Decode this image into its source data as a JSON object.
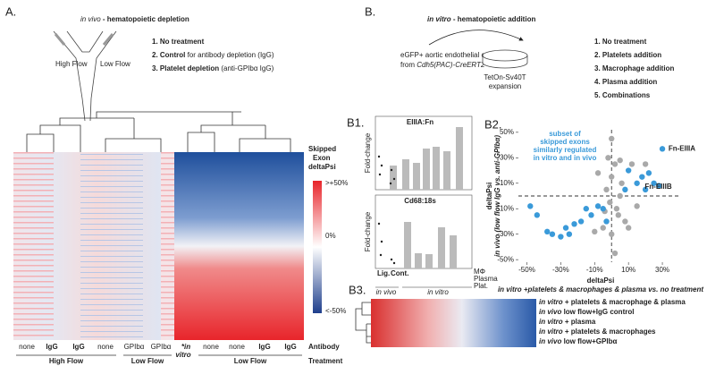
{
  "panels": {
    "A": {
      "label": "A.",
      "title_italic": "in vivo",
      "title_rest": " - hematopoietic depletion",
      "vessel_labels": [
        "High Flow",
        "Low Flow"
      ],
      "list": [
        [
          "1. No treatment",
          ""
        ],
        [
          "2. Control",
          " for antibody depletion (IgG)"
        ],
        [
          "3. Platelet depletion",
          " (anti-GPIbα IgG)"
        ]
      ],
      "legend_title": [
        "Skipped",
        "Exon",
        "deltaPsi"
      ],
      "legend_ticks": [
        ">+50%",
        "0%",
        "<-50%"
      ],
      "columns": [
        "none",
        "IgG",
        "IgG",
        "none",
        "GPIbα",
        "GPIbα",
        "*in",
        "none",
        "none",
        "IgG",
        "IgG"
      ],
      "vitro": "vitro",
      "groups": [
        "High Flow",
        "Low Flow",
        "Low Flow"
      ],
      "row_labels": [
        "Antibody",
        "Treatment"
      ]
    },
    "B": {
      "label": "B.",
      "title_italic": "in vitro",
      "title_rest": " - hematopoietic addition",
      "cells": [
        "eGFP+ aortic endothelial cells",
        "from ",
        "Cdh5(PAC)-CreERT2"
      ],
      "dish": [
        "TetOn-Sv40T",
        "expansion"
      ],
      "list": [
        "1. No treatment",
        "2. Platelets addition",
        "3. Macrophage addition",
        "4. Plasma addition",
        "5. Combinations"
      ]
    },
    "B1": {
      "label": "B1.",
      "charts": [
        "EIIIA:Fn",
        "Cd68:18s"
      ],
      "ylabel": "Fold-change",
      "conditions": [
        "MΦ",
        "Plasma",
        "Plat."
      ],
      "lig": [
        "Lig.",
        "Cont."
      ],
      "groups": [
        "in vivo",
        "in vitro"
      ]
    },
    "B3": {
      "label": "B3.",
      "rows": [
        [
          "in vitro",
          " + platelets & macrophage & plasma"
        ],
        [
          "in vivo",
          " low flow+IgG control"
        ],
        [
          "in vitro",
          " + plasma"
        ],
        [
          "in vitro",
          " + platelets & macrophages"
        ],
        [
          "in vivo",
          " low flow+GPIbα"
        ]
      ]
    }
  },
  "chart_data": {
    "type": "scatter",
    "label": "B2.",
    "annotation": [
      "subset of",
      "skipped exons",
      "similarly regulated",
      "in vitro and in vivo"
    ],
    "point_labels": [
      "Fn-EIIIA",
      "Fn-EIIIB"
    ],
    "xlabel": "deltaPsi",
    "xlabel2": "in vitro +platelets & macrophages & plasma vs. no treatment",
    "ylabel": "deltaPsi",
    "ylabel2": "in vivo (low flow IgG vs. anti-GPIbα)",
    "xlim": [
      -55,
      40
    ],
    "ylim": [
      -52,
      52
    ],
    "xticks": [
      {
        "value": -50,
        "label": "-50%"
      },
      {
        "value": -30,
        "label": "-30%"
      },
      {
        "value": -10,
        "label": "-10%"
      },
      {
        "value": 10,
        "label": "10%"
      },
      {
        "value": 30,
        "label": "30%"
      }
    ],
    "yticks": [
      {
        "value": 50,
        "label": "50%"
      },
      {
        "value": 30,
        "label": "30%"
      },
      {
        "value": 10,
        "label": "10%"
      },
      {
        "value": -10,
        "label": "-10%"
      },
      {
        "value": -30,
        "label": "-30%"
      },
      {
        "value": -50,
        "label": "-50%"
      }
    ],
    "series": [
      {
        "color": "#a9a9a9",
        "x": [
          0,
          -2,
          2,
          0,
          -3,
          5,
          -1,
          3,
          -5,
          0,
          8,
          15,
          10,
          2,
          -8,
          5,
          12,
          20,
          -10,
          4,
          -4,
          6
        ],
        "y": [
          45,
          30,
          25,
          15,
          5,
          0,
          -5,
          -10,
          -25,
          -30,
          -20,
          -8,
          -25,
          -45,
          18,
          28,
          25,
          25,
          -28,
          -15,
          -12,
          10
        ]
      },
      {
        "color": "#3a9ad9",
        "x": [
          -48,
          -44,
          -38,
          -35,
          -30,
          -27,
          -25,
          -22,
          -18,
          -15,
          -12,
          -8,
          -5,
          -3,
          8,
          10,
          18,
          20,
          22,
          25,
          28,
          30,
          15
        ],
        "y": [
          -8,
          -15,
          -28,
          -30,
          -32,
          -25,
          -30,
          -22,
          -20,
          -10,
          -15,
          -8,
          -10,
          -20,
          5,
          20,
          15,
          5,
          18,
          10,
          8,
          37,
          10
        ]
      }
    ]
  }
}
